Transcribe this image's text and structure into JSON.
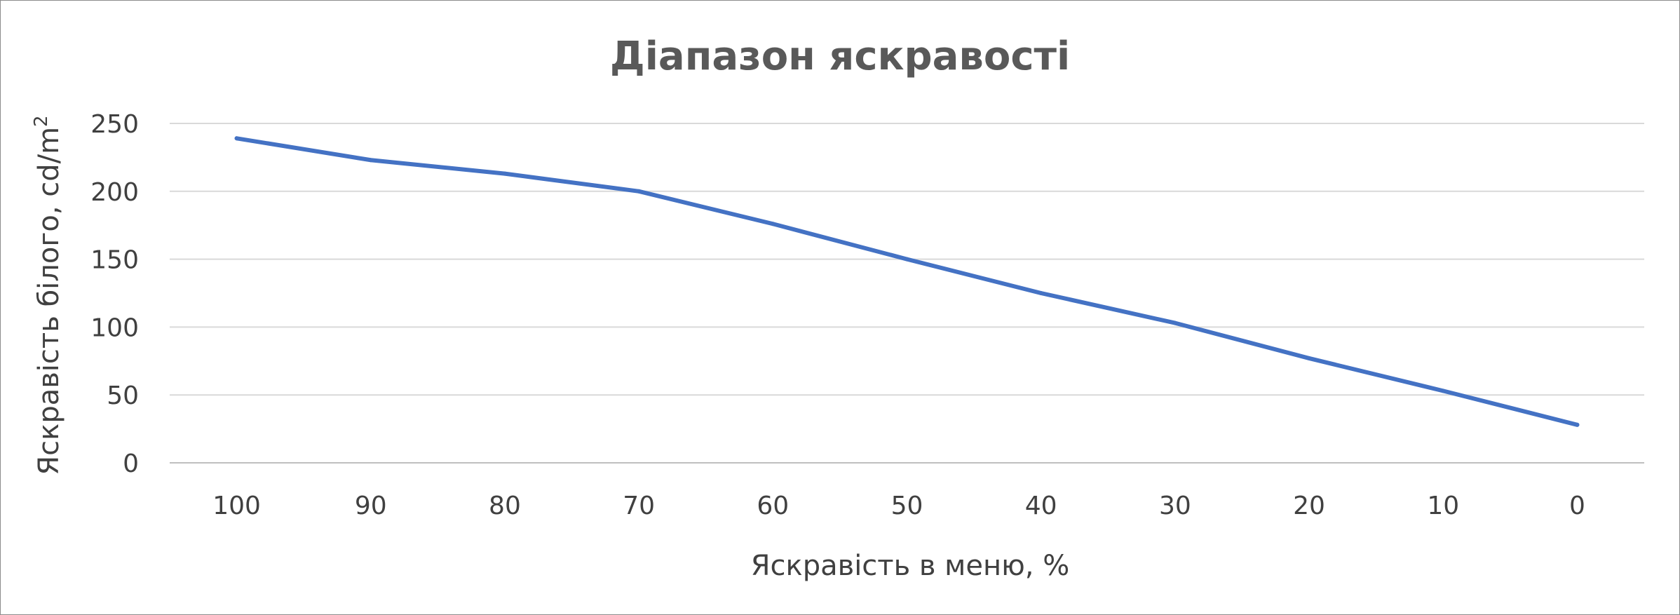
{
  "chart_data": {
    "type": "line",
    "title": "Діапазон яскравості",
    "xlabel": "Яскравість в меню, %",
    "ylabel_main": "Яскравість білого,  cd/m",
    "ylabel_sup": "2",
    "categories": [
      "100",
      "90",
      "80",
      "70",
      "60",
      "50",
      "40",
      "30",
      "20",
      "10",
      "0"
    ],
    "y_ticks": [
      "0",
      "50",
      "100",
      "150",
      "200",
      "250"
    ],
    "ylim": [
      0,
      250
    ],
    "grid": true,
    "legend": "none",
    "series": [
      {
        "color": "#4472c4",
        "values": [
          239,
          223,
          213,
          200,
          176,
          150,
          125,
          103,
          77,
          53,
          28
        ]
      }
    ]
  }
}
